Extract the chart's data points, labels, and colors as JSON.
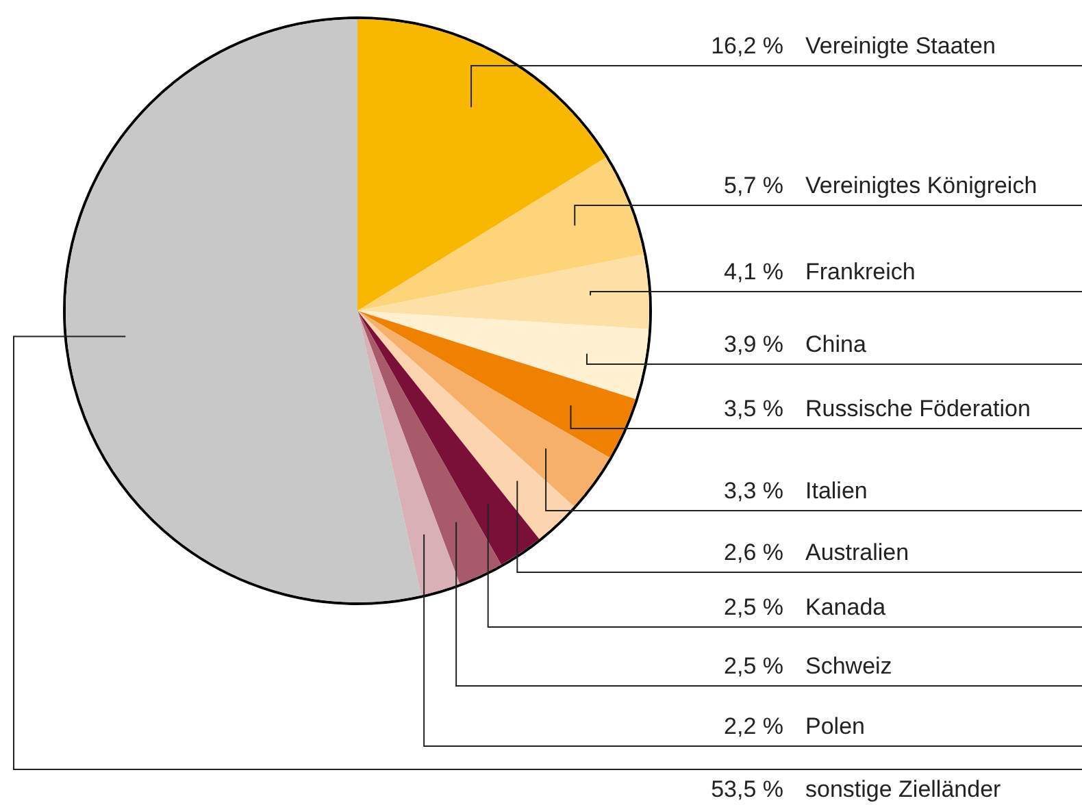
{
  "chart_data": {
    "type": "pie",
    "categories": [
      "Vereinigte Staaten",
      "Vereinigtes Königreich",
      "Frankreich",
      "China",
      "Russische Föderation",
      "Italien",
      "Australien",
      "Kanada",
      "Schweiz",
      "Polen",
      "sonstige Zielländer"
    ],
    "values": [
      16.2,
      5.7,
      4.1,
      3.9,
      3.5,
      3.3,
      2.6,
      2.5,
      2.5,
      2.2,
      53.5
    ],
    "value_labels": [
      "16,2 %",
      "5,7 %",
      "4,1 %",
      "3,9 %",
      "3,5 %",
      "3,3 %",
      "2,6 %",
      "2,5 %",
      "2,5 %",
      "2,2 %",
      "53,5 %"
    ],
    "colors": [
      "#f9b800",
      "#fdd47a",
      "#fde0a6",
      "#fef0d0",
      "#f08000",
      "#f6b06a",
      "#fcd5b0",
      "#7a1038",
      "#a85a6a",
      "#d8b0b5",
      "#c8c8c8"
    ]
  }
}
